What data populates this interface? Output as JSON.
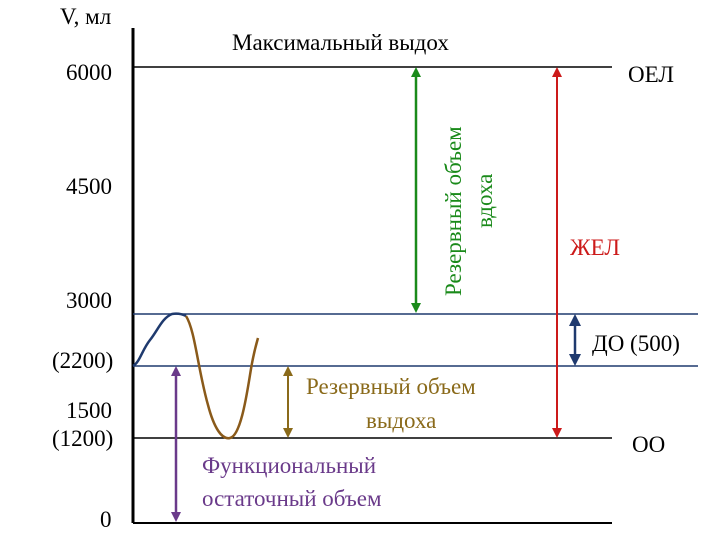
{
  "axis": {
    "unit_label": "V, мл",
    "ticks": [
      "6000",
      "4500",
      "3000",
      "(2200)",
      "1500",
      "(1200)",
      "0"
    ]
  },
  "labels": {
    "max_exhale": "Максимальный выдох",
    "inspiratory_reserve_line1": "Резервный объем",
    "inspiratory_reserve_line2": "вдоха",
    "tlc": "ОЕЛ",
    "vc": "ЖЕЛ",
    "tidal_volume": "ДО (500)",
    "expiratory_reserve_line1": "Резервный объем",
    "expiratory_reserve_line2": "выдоха",
    "residual": "ОО",
    "frc_line1": "Функциональный",
    "frc_line2": "остаточный объем"
  },
  "colors": {
    "green_arrow": "#1a8a1a",
    "red_arrow": "#cc1a1a",
    "navy_arrow": "#1f3a6e",
    "olive_arrow": "#8a6a1a",
    "purple_arrow": "#6a3a8a",
    "curve_dark": "#1f3a6e",
    "curve_brown": "#8a5a1a",
    "olive_text": "#8a6a1a",
    "purple_text": "#6a3a8a",
    "green_text": "#1a8a1a",
    "red_text": "#cc1a1a"
  }
}
